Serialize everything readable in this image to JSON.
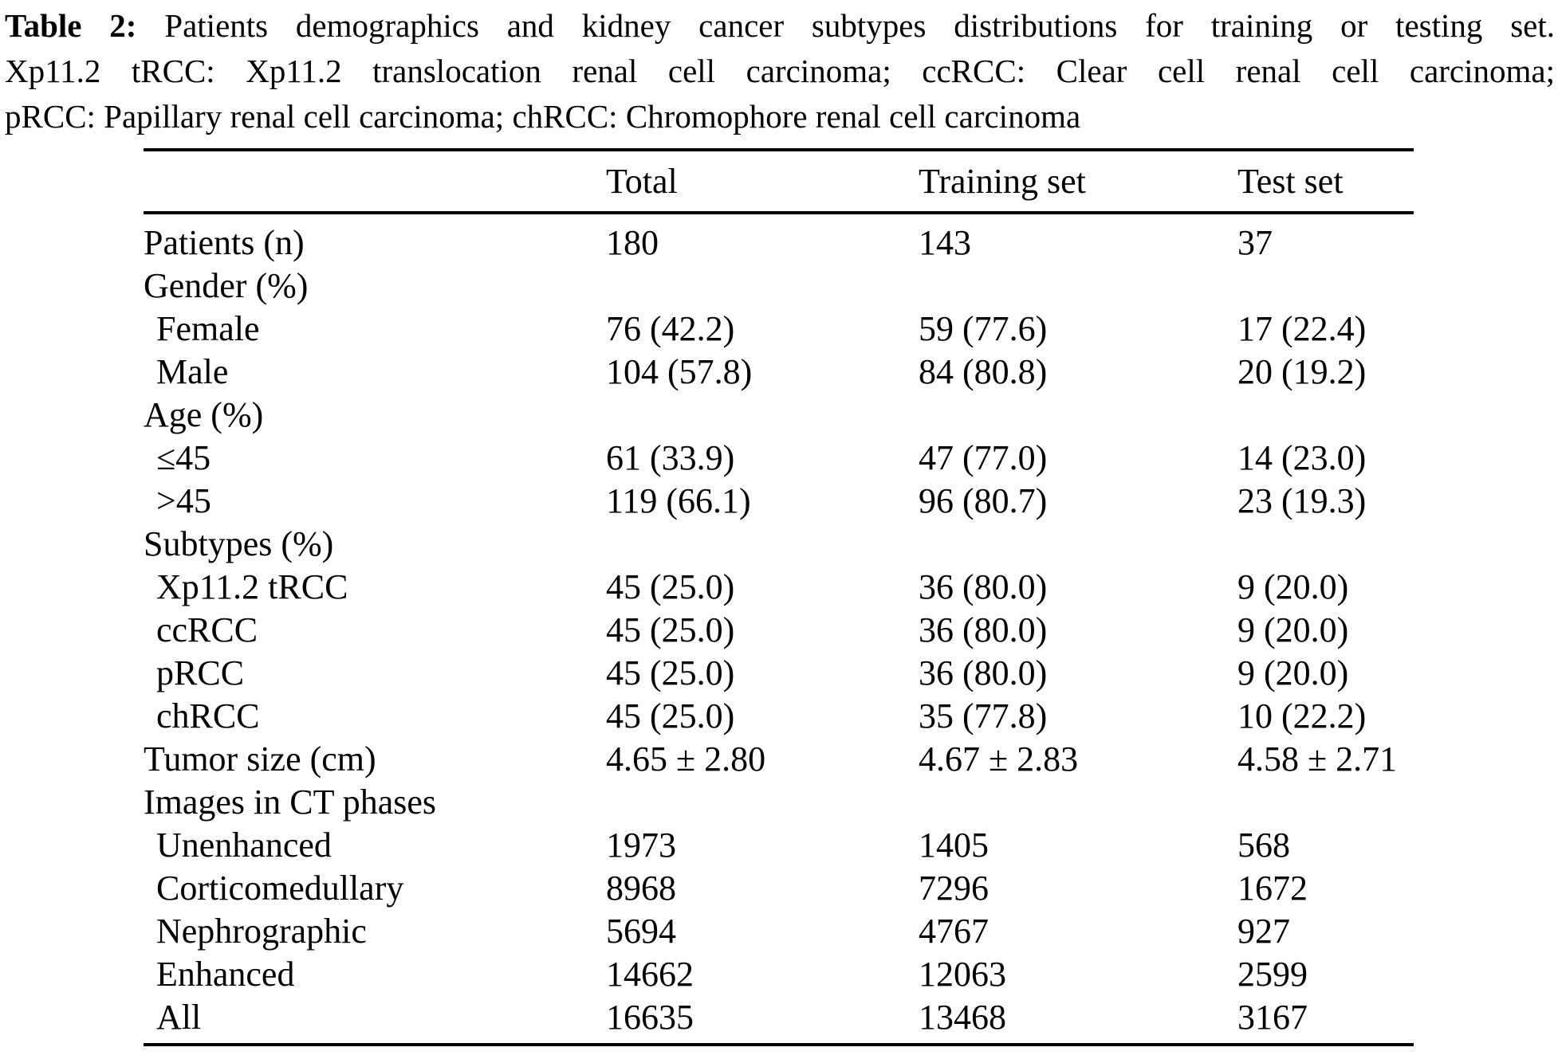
{
  "caption": {
    "label": "Table 2:",
    "line1": "Patients demographics and kidney cancer subtypes distributions for training or testing set.",
    "line2": "Xp11.2 tRCC: Xp11.2 translocation renal cell carcinoma; ccRCC: Clear cell renal cell carcinoma;",
    "line3": "pRCC: Papillary renal cell carcinoma; chRCC: Chromophore renal cell carcinoma"
  },
  "table": {
    "header": {
      "total": "Total",
      "training": "Training set",
      "test": "Test set"
    },
    "rows": [
      {
        "label": "Patients (n)",
        "indent": false,
        "total": "180",
        "training": "143",
        "test": "37"
      },
      {
        "label": "Gender (%)",
        "indent": false,
        "total": "",
        "training": "",
        "test": ""
      },
      {
        "label": "Female",
        "indent": true,
        "total": "76 (42.2)",
        "training": "59 (77.6)",
        "test": "17 (22.4)"
      },
      {
        "label": "Male",
        "indent": true,
        "total": "104 (57.8)",
        "training": "84 (80.8)",
        "test": "20 (19.2)"
      },
      {
        "label": "Age (%)",
        "indent": false,
        "total": "",
        "training": "",
        "test": ""
      },
      {
        "label": "≤45",
        "indent": true,
        "total": "61 (33.9)",
        "training": "47 (77.0)",
        "test": "14 (23.0)"
      },
      {
        "label": ">45",
        "indent": true,
        "total": "119 (66.1)",
        "training": "96 (80.7)",
        "test": "23 (19.3)"
      },
      {
        "label": "Subtypes (%)",
        "indent": false,
        "total": "",
        "training": "",
        "test": ""
      },
      {
        "label": "Xp11.2 tRCC",
        "indent": true,
        "total": "45 (25.0)",
        "training": "36 (80.0)",
        "test": "9 (20.0)"
      },
      {
        "label": "ccRCC",
        "indent": true,
        "total": "45 (25.0)",
        "training": "36 (80.0)",
        "test": "9 (20.0)"
      },
      {
        "label": "pRCC",
        "indent": true,
        "total": "45 (25.0)",
        "training": "36 (80.0)",
        "test": "9 (20.0)"
      },
      {
        "label": "chRCC",
        "indent": true,
        "total": "45 (25.0)",
        "training": "35 (77.8)",
        "test": "10 (22.2)"
      },
      {
        "label": "Tumor size (cm)",
        "indent": false,
        "total": "4.65 ± 2.80",
        "training": "4.67 ± 2.83",
        "test": "4.58 ± 2.71"
      },
      {
        "label": "Images in CT phases",
        "indent": false,
        "total": "",
        "training": "",
        "test": ""
      },
      {
        "label": "Unenhanced",
        "indent": true,
        "total": "1973",
        "training": "1405",
        "test": "568"
      },
      {
        "label": "Corticomedullary",
        "indent": true,
        "total": "8968",
        "training": "7296",
        "test": "1672"
      },
      {
        "label": "Nephrographic",
        "indent": true,
        "total": "5694",
        "training": "4767",
        "test": "927"
      },
      {
        "label": "Enhanced",
        "indent": true,
        "total": "14662",
        "training": "12063",
        "test": "2599"
      },
      {
        "label": "All",
        "indent": true,
        "total": "16635",
        "training": "13468",
        "test": "3167"
      }
    ]
  },
  "colors": {
    "text": "#000000",
    "background": "#ffffff",
    "rule": "#000000"
  }
}
